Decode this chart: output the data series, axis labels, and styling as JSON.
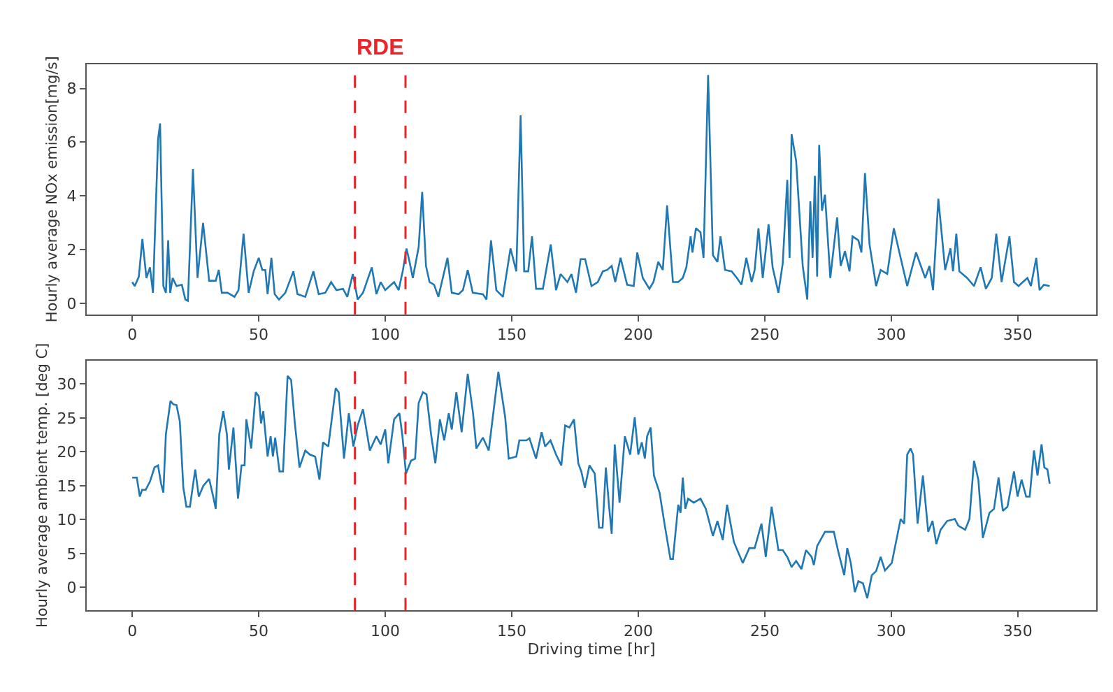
{
  "chart_data": [
    {
      "type": "line",
      "ylabel": "Hourly average NOx emission[mg/s]",
      "annotations": [
        "RDE"
      ],
      "series": [
        {
          "color": "#1f77b4",
          "x": [
            0,
            1,
            2.6,
            4,
            5.6,
            7,
            8.2,
            10.2,
            11,
            12.3,
            13.3,
            14.2,
            15,
            16,
            17.5,
            19.6,
            21,
            22,
            24,
            25.8,
            28,
            30.4,
            33,
            34.2,
            35.4,
            37.7,
            40.4,
            42,
            44,
            46,
            48,
            50,
            51.4,
            52.6,
            53.5,
            55,
            56.3,
            58,
            60.5,
            63.7,
            65.3,
            68.4,
            71.6,
            73.7,
            76.3,
            78.6,
            80.7,
            83.3,
            85,
            87.2,
            89.1,
            91.2,
            94.7,
            96.5,
            98.2,
            100,
            103.5,
            105.3,
            107,
            108.4,
            109.6,
            110.9,
            113.2,
            114.6,
            116.1,
            117.5,
            119.3,
            121,
            124.6,
            126.3,
            129,
            130.7,
            132.6,
            134.6,
            138.6,
            140,
            141.8,
            143.9,
            146.5,
            149.5,
            151.8,
            153.5,
            154.9,
            156.5,
            158,
            159.6,
            162.3,
            165.4,
            167.5,
            169.3,
            172,
            173.6,
            175.4,
            177.2,
            179,
            181.5,
            184,
            186,
            187.7,
            189.5,
            190.9,
            193,
            195.6,
            198.2,
            199.6,
            201.8,
            204.4,
            206,
            207.9,
            209.7,
            211.4,
            213.7,
            215.8,
            217.6,
            219,
            220.7,
            221.4,
            222.8,
            224.6,
            225.8,
            227.6,
            229.5,
            231.3,
            232.5,
            234.3,
            236.9,
            239,
            240.8,
            242.7,
            244.8,
            246,
            247.5,
            249.2,
            251.5,
            253.1,
            255.4,
            257.1,
            258.9,
            259.8,
            260.6,
            262.4,
            265,
            266.8,
            268,
            268.9,
            269.8,
            270.7,
            271.5,
            272.6,
            273.8,
            275.9,
            278.6,
            280,
            281.7,
            283.5,
            284.7,
            287,
            288.2,
            289.6,
            291.4,
            294,
            295.8,
            298.4,
            301,
            303.7,
            306.3,
            309.8,
            313.4,
            315.1,
            316.5,
            318.6,
            321.3,
            323.4,
            324.4,
            325.7,
            326.9,
            330,
            332.7,
            335.3,
            337.4,
            339.7,
            341.5,
            343.6,
            346.7,
            348.5,
            350.3,
            352,
            353.8,
            355.2,
            357.3,
            358.6,
            360.3,
            362.6
          ],
          "values": [
            0.8,
            0.65,
            1.0,
            2.4,
            0.95,
            1.35,
            0.4,
            6.1,
            6.7,
            0.65,
            0.4,
            2.35,
            0.4,
            0.95,
            0.65,
            0.7,
            0.15,
            0.1,
            5.0,
            0.95,
            3.0,
            0.85,
            0.85,
            1.25,
            0.4,
            0.4,
            0.25,
            0.5,
            2.6,
            0.4,
            1.2,
            1.7,
            1.25,
            1.25,
            0.35,
            1.7,
            0.35,
            0.15,
            0.4,
            1.2,
            0.35,
            0.25,
            1.2,
            0.35,
            0.4,
            0.8,
            0.5,
            0.55,
            0.25,
            1.1,
            0.15,
            0.4,
            1.35,
            0.35,
            0.8,
            0.5,
            0.8,
            0.5,
            1.25,
            2.05,
            1.55,
            0.95,
            2.1,
            4.15,
            1.4,
            0.8,
            0.7,
            0.25,
            1.7,
            0.4,
            0.35,
            0.5,
            1.25,
            0.4,
            0.35,
            0.15,
            2.35,
            0.5,
            0.25,
            2.05,
            1.2,
            7.0,
            1.2,
            1.2,
            2.5,
            0.55,
            0.55,
            2.2,
            0.5,
            1.1,
            0.8,
            1.1,
            0.4,
            1.65,
            1.65,
            0.65,
            0.8,
            1.2,
            1.25,
            1.4,
            0.8,
            1.7,
            0.7,
            0.65,
            1.9,
            0.95,
            0.55,
            0.8,
            1.55,
            1.25,
            3.65,
            0.8,
            0.8,
            0.95,
            1.35,
            2.5,
            1.9,
            2.8,
            2.65,
            1.7,
            8.5,
            1.8,
            1.55,
            2.5,
            1.25,
            1.2,
            0.95,
            0.7,
            1.7,
            0.8,
            1.25,
            2.8,
            0.95,
            2.95,
            1.35,
            0.4,
            1.5,
            4.6,
            1.7,
            6.3,
            5.3,
            1.4,
            0.15,
            3.8,
            1.7,
            4.75,
            1.0,
            5.9,
            3.45,
            4.05,
            0.95,
            3.2,
            1.4,
            1.95,
            1.2,
            2.5,
            2.35,
            1.9,
            4.85,
            2.2,
            0.65,
            1.25,
            1.1,
            2.8,
            1.7,
            0.65,
            1.9,
            0.95,
            1.4,
            0.5,
            3.9,
            1.25,
            2.05,
            1.2,
            2.6,
            1.2,
            0.95,
            0.65,
            1.35,
            0.55,
            0.95,
            2.6,
            0.8,
            2.5,
            0.8,
            0.65,
            0.8,
            0.95,
            0.65,
            1.7,
            0.5,
            0.7,
            0.65
          ]
        }
      ],
      "xlim": [
        -18,
        381
      ],
      "xticks": [
        0,
        50,
        100,
        150,
        200,
        250,
        300,
        350
      ],
      "ylim": [
        -0.4,
        8.9
      ],
      "yticks": [
        0,
        2,
        4,
        6,
        8
      ],
      "marker": "none",
      "line_style": "solid",
      "ref_lines": [
        {
          "axis": "x",
          "value": 88,
          "color": "#e8262a",
          "line_style": "dashed"
        },
        {
          "axis": "x",
          "value": 108,
          "color": "#e8262a",
          "line_style": "dashed"
        }
      ]
    },
    {
      "type": "line",
      "xlabel": "Driving time [hr]",
      "ylabel": "Hourly average ambient temp. [deg C]",
      "series": [
        {
          "color": "#1f77b4",
          "x": [
            0,
            1.8,
            3,
            3.9,
            5.3,
            7,
            8.8,
            10.2,
            11.4,
            12.3,
            13.3,
            15.1,
            16.3,
            17.5,
            18.8,
            20.2,
            21.4,
            22.8,
            24.9,
            26.3,
            28.1,
            30.4,
            32,
            33,
            34.4,
            36,
            37.4,
            38.2,
            40,
            41.8,
            43.2,
            44.4,
            45.1,
            47,
            48.8,
            50,
            50.9,
            51.8,
            53.5,
            54.7,
            55.6,
            56.5,
            58.2,
            59.6,
            61.4,
            62.8,
            64.2,
            66.1,
            68.4,
            70.2,
            72.3,
            74,
            75.4,
            77.5,
            80.4,
            81.6,
            83.7,
            85.6,
            87.4,
            89.1,
            91.2,
            93.9,
            96.5,
            98.2,
            100,
            101.2,
            103.5,
            105.6,
            106.7,
            108.2,
            110.2,
            111.8,
            113.2,
            114.9,
            116.3,
            118.1,
            119.8,
            121.6,
            123.3,
            125.1,
            126.3,
            128.1,
            130.2,
            132.6,
            134.7,
            136,
            138.6,
            140.9,
            144.7,
            147.4,
            148.8,
            151.8,
            153,
            155.8,
            157,
            159.6,
            161.8,
            163.2,
            165.3,
            167.5,
            169.6,
            171.1,
            172.8,
            174.6,
            176.3,
            177.5,
            178.9,
            180.7,
            182.8,
            184.5,
            185.9,
            187.2,
            188.4,
            189.5,
            190.7,
            192.6,
            194.7,
            196.8,
            198.6,
            200,
            201.4,
            202.6,
            203.5,
            204.9,
            206.2,
            208.4,
            210.5,
            212.7,
            213.7,
            215.8,
            216.7,
            217.6,
            218.6,
            219.7,
            221.9,
            224.6,
            226.7,
            229.5,
            231.3,
            233.4,
            235.1,
            237.8,
            241.3,
            243.9,
            246,
            248.7,
            250.4,
            252.7,
            255.4,
            257.1,
            258.9,
            260.6,
            262.4,
            264.5,
            266.3,
            268.5,
            269.4,
            270.7,
            273.8,
            277.3,
            279.1,
            281.4,
            282.6,
            284,
            285.6,
            287,
            288.8,
            290.5,
            292.3,
            294,
            295.8,
            297.5,
            300.2,
            303.7,
            305.1,
            306.3,
            307.6,
            308.6,
            310.4,
            312.5,
            314.6,
            316.3,
            317.8,
            319.5,
            322.1,
            325.1,
            326.5,
            329.2,
            330.9,
            332.7,
            334.4,
            336.2,
            338.8,
            340.6,
            342.4,
            344.1,
            345.9,
            348.5,
            349.9,
            351.5,
            353.3,
            354.7,
            356.4,
            357.8,
            359.4,
            360.5,
            361.7,
            362.6
          ],
          "values": [
            16.2,
            16.2,
            13.4,
            14.4,
            14.4,
            15.6,
            17.7,
            18,
            15.3,
            14,
            22.6,
            27.5,
            27,
            26.9,
            24.5,
            14.7,
            11.9,
            11.9,
            17.4,
            13.4,
            15,
            16,
            13.4,
            11.6,
            22.6,
            26,
            22.6,
            17.4,
            23.6,
            13.1,
            18,
            18,
            24.8,
            20.5,
            28.8,
            28.2,
            24.2,
            26,
            19.3,
            22.3,
            19.3,
            22.1,
            17.1,
            17.1,
            31.2,
            30.6,
            24.5,
            17.7,
            20.2,
            19.6,
            19.3,
            15.9,
            21.4,
            20.8,
            29.4,
            28.8,
            19,
            25.7,
            20.8,
            23.9,
            26.3,
            20.2,
            22.3,
            21.1,
            23.3,
            18.3,
            24.8,
            25.7,
            22.6,
            16.8,
            18.7,
            19,
            27.2,
            28.8,
            28.5,
            22.6,
            18.3,
            24.8,
            21.7,
            25.7,
            23.3,
            28.8,
            22.9,
            31.5,
            25.7,
            20.5,
            22.1,
            20.2,
            31.8,
            25.1,
            19,
            19.3,
            21.7,
            21.7,
            22,
            19,
            22.9,
            20.8,
            21.7,
            19.6,
            18,
            23.9,
            23.6,
            24.8,
            18.3,
            17.1,
            14.7,
            18,
            16.8,
            8.8,
            8.8,
            17.7,
            12.2,
            7.9,
            21.1,
            12.5,
            22.3,
            19.6,
            25.1,
            19.6,
            21.4,
            19,
            22.3,
            23.6,
            16.5,
            14,
            9.1,
            4.2,
            4.2,
            12.2,
            11,
            16.2,
            11.6,
            13.1,
            12.5,
            13.1,
            11.6,
            7.6,
            9.8,
            7,
            12.2,
            6.7,
            3.6,
            5.8,
            5.8,
            9.4,
            4.5,
            11.9,
            5.5,
            5.5,
            4.5,
            3,
            3.9,
            2.7,
            5.5,
            4.5,
            3.3,
            6.1,
            8.2,
            8.2,
            5.2,
            1.8,
            5.8,
            3.6,
            -0.7,
            0.9,
            0.6,
            -1.6,
            1.8,
            2.4,
            4.5,
            2.5,
            3.6,
            10.1,
            9.4,
            19.6,
            20.5,
            19.6,
            9.4,
            16.5,
            8.2,
            9.8,
            6.4,
            8.5,
            9.8,
            10.1,
            9.1,
            8.5,
            10.1,
            18.7,
            15.9,
            7.3,
            11,
            11.6,
            16.2,
            11.3,
            11.9,
            17.1,
            13.4,
            15.9,
            13.4,
            13.4,
            20.2,
            16.5,
            21.1,
            17.7,
            17.4,
            15.3
          ]
        }
      ],
      "xlim": [
        -18,
        381
      ],
      "xticks": [
        0,
        50,
        100,
        150,
        200,
        250,
        300,
        350
      ],
      "ylim": [
        -3.4,
        33.5
      ],
      "yticks": [
        0,
        5,
        10,
        15,
        20,
        25,
        30
      ],
      "marker": "none",
      "line_style": "solid",
      "ref_lines": [
        {
          "axis": "x",
          "value": 88,
          "color": "#e8262a",
          "line_style": "dashed"
        },
        {
          "axis": "x",
          "value": 108,
          "color": "#e8262a",
          "line_style": "dashed"
        }
      ]
    }
  ]
}
